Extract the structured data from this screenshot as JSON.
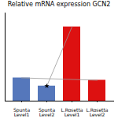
{
  "chart_data": {
    "type": "bar",
    "title": "Relative mRNA expression GCN2",
    "categories": [
      "Spunta\nLevel1",
      "Spunta\nLevel2",
      "L.Rosetta\nLevel1",
      "L.Rosetta\nLevel2"
    ],
    "values": [
      1.0,
      0.65,
      3.2,
      0.9
    ],
    "colors": [
      "#5577bb",
      "#5577bb",
      "#dd1111",
      "#dd1111"
    ],
    "ylim": [
      0,
      3.8
    ],
    "tick_labels": "x",
    "grid": false
  }
}
